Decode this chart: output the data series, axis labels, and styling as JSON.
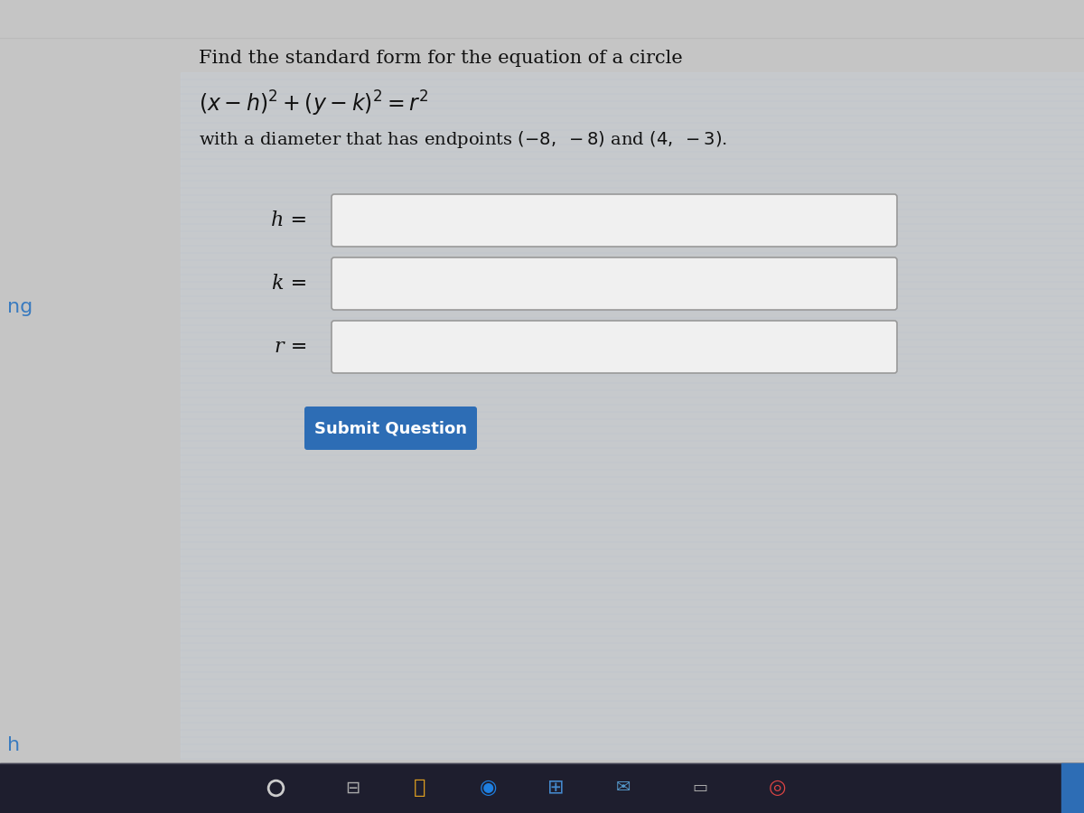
{
  "bg_color": "#c5c5c5",
  "bg_blue_tint": "#c8d0d8",
  "title_text": "Find the standard form for the equation of a circle",
  "equation_text": "$(x - h)^2 + (y - k)^2 = r^2$",
  "subtitle_text": "with a diameter that has endpoints $( - 8,\\ - 8)$ and $(4,\\ - 3)$.",
  "input_labels": [
    "h =",
    "k =",
    "r ="
  ],
  "button_text": "Submit Question",
  "button_color": "#2d6db5",
  "button_text_color": "#ffffff",
  "input_box_color": "#f0f0f0",
  "input_box_border": "#999999",
  "left_label_ng_color": "#3a7bbf",
  "left_label_ng_text": "ng",
  "bottom_label_h_text": "h",
  "bottom_label_h_color": "#3a7bbf",
  "taskbar_color": "#1e1e2e",
  "title_fontsize": 15,
  "eq_fontsize": 17,
  "subtitle_fontsize": 14,
  "label_fontsize": 16,
  "button_fontsize": 13
}
